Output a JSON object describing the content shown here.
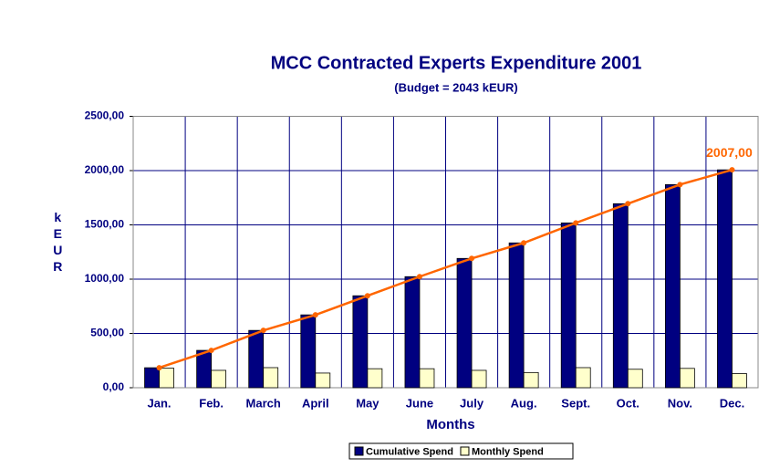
{
  "chart_data": {
    "type": "bar",
    "title": "MCC Contracted Experts Expenditure 2001",
    "subtitle": "(Budget = 2043 kEUR)",
    "x_label": "Months",
    "y_label": "kEUR",
    "categories": [
      "Jan.",
      "Feb.",
      "March",
      "April",
      "May",
      "June",
      "July",
      "Aug.",
      "Sept.",
      "Oct.",
      "Nov.",
      "Dec."
    ],
    "series": [
      {
        "name": "Cumulative Spend",
        "color": "#000080",
        "line_color": "#ff6600",
        "values": [
          184,
          344,
          528,
          671,
          847,
          1023,
          1191,
          1334,
          1518,
          1695,
          1871,
          2007
        ],
        "value_labels": [
          null,
          null,
          null,
          null,
          null,
          null,
          null,
          null,
          null,
          null,
          null,
          "2007,00"
        ]
      },
      {
        "name": "Monthly Spend",
        "color": "#ffffcc",
        "values": [
          180,
          160,
          185,
          135,
          175,
          175,
          160,
          140,
          185,
          170,
          178,
          130
        ]
      }
    ],
    "ylim": [
      0,
      2500
    ],
    "yticks": [
      {
        "value": 0,
        "label": "0,00"
      },
      {
        "value": 500,
        "label": "500,00"
      },
      {
        "value": 1000,
        "label": "1000,00"
      },
      {
        "value": 1500,
        "label": "1500,00"
      },
      {
        "value": 2000,
        "label": "2000,00"
      },
      {
        "value": 2500,
        "label": "2500,00"
      }
    ],
    "grid": true,
    "legend": "bottom"
  }
}
